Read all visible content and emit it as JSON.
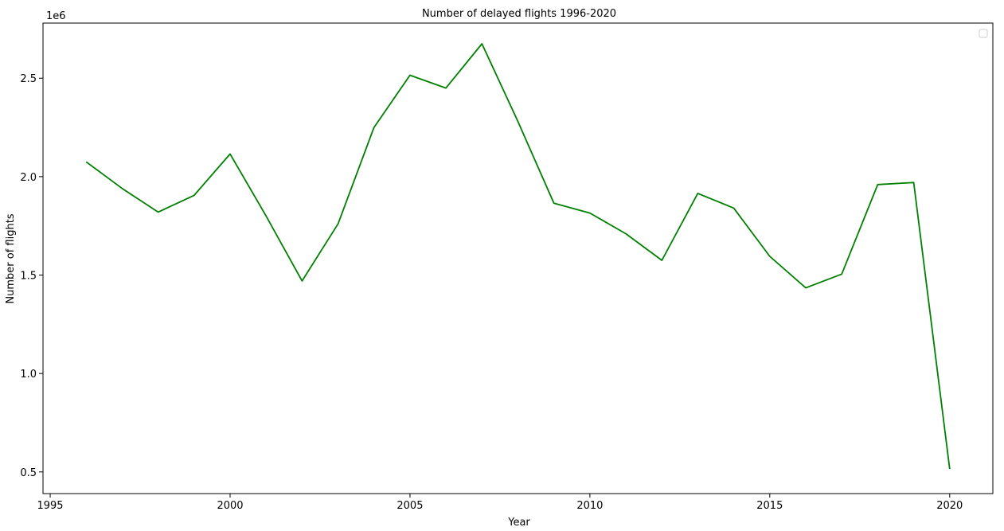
{
  "chart_data": {
    "type": "line",
    "title": "Number of delayed flights 1996-2020",
    "xlabel": "Year",
    "ylabel": "Number of flights",
    "y_offset_label": "1e6",
    "x_ticks": [
      "1995",
      "2000",
      "2005",
      "2010",
      "2015",
      "2020"
    ],
    "y_ticks": [
      "0.5",
      "1.0",
      "1.5",
      "2.0",
      "2.5"
    ],
    "xlim": [
      1994.8,
      2021.2
    ],
    "ylim": [
      0.39,
      2.78
    ],
    "grid": false,
    "legend": "top-right (empty)",
    "line_color": "#008000",
    "series": [
      {
        "x": [
          1996,
          1997,
          1998,
          1999,
          2000,
          2001,
          2002,
          2003,
          2004,
          2005,
          2006,
          2007,
          2008,
          2009,
          2010,
          2011,
          2012,
          2013,
          2014,
          2015,
          2016,
          2017,
          2018,
          2019,
          2020
        ],
        "values": [
          2.075,
          1.94,
          1.82,
          1.905,
          2.115,
          1.8,
          1.47,
          1.76,
          2.25,
          2.515,
          2.45,
          2.675,
          2.28,
          1.865,
          1.815,
          1.71,
          1.575,
          1.915,
          1.84,
          1.595,
          1.435,
          1.505,
          1.96,
          1.97,
          0.515
        ]
      }
    ]
  }
}
